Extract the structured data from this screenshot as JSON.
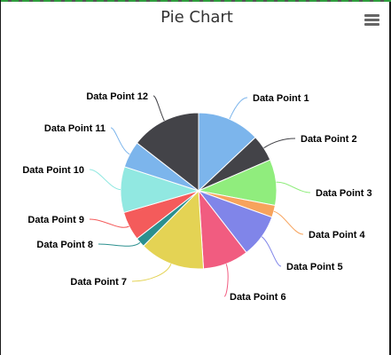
{
  "chart_data": {
    "type": "pie",
    "title": "Pie Chart",
    "series": [
      {
        "values": [
          {
            "name": "Data Point 1",
            "value": 13.0,
            "color": "#7cb5ec"
          },
          {
            "name": "Data Point 2",
            "value": 5.5,
            "color": "#434348"
          },
          {
            "name": "Data Point 3",
            "value": 9.5,
            "color": "#90ed7d"
          },
          {
            "name": "Data Point 4",
            "value": 2.5,
            "color": "#f7a35c"
          },
          {
            "name": "Data Point 5",
            "value": 9.0,
            "color": "#8085e9"
          },
          {
            "name": "Data Point 6",
            "value": 9.5,
            "color": "#f15c80"
          },
          {
            "name": "Data Point 7",
            "value": 13.5,
            "color": "#e4d354"
          },
          {
            "name": "Data Point 8",
            "value": 2.0,
            "color": "#2b908f"
          },
          {
            "name": "Data Point 9",
            "value": 6.0,
            "color": "#f45b5b"
          },
          {
            "name": "Data Point 10",
            "value": 9.5,
            "color": "#91e8e1"
          },
          {
            "name": "Data Point 11",
            "value": 5.5,
            "color": "#7cb5ec"
          },
          {
            "name": "Data Point 12",
            "value": 14.5,
            "color": "#434348"
          }
        ]
      }
    ],
    "legend": "none",
    "data_labels": "outside with connectors"
  },
  "menu": {
    "icon": "hamburger-menu-icon",
    "color": "#666666"
  }
}
